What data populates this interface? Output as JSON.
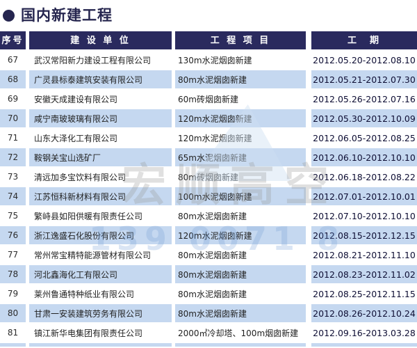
{
  "page": {
    "title": "国内新建工程",
    "bullet_icon": "●"
  },
  "table": {
    "headers": [
      "序号",
      "建 设 单 位",
      "工 程 项 目",
      "工　期"
    ],
    "rows": [
      {
        "no": "67",
        "company": "武汉常阳新力建设工程有限公司",
        "project": "130m水泥烟囱新建",
        "period": "2012.05.20-2012.08.10"
      },
      {
        "no": "68",
        "company": "广灵县标泰建筑安装有限公司",
        "project": "80m水泥烟囱新建",
        "period": "2012.05.21-2012.07.30"
      },
      {
        "no": "69",
        "company": "安徽天成建设有限公司",
        "project": "60m砖烟囱新建",
        "period": "2012.05.26-2012.07.16"
      },
      {
        "no": "70",
        "company": "咸宁南玻玻璃有限公司",
        "project": "120m水泥烟囱新建",
        "period": "2012.05.30-2012.10.09"
      },
      {
        "no": "71",
        "company": "山东大泽化工有限公司",
        "project": "120m水泥烟囱新建",
        "period": "2012.06.05-2012.08.25"
      },
      {
        "no": "72",
        "company": "鞍钢关宝山选矿厂",
        "project": "65m水泥烟囱新建",
        "period": "2012.06.10-2012.10.10"
      },
      {
        "no": "73",
        "company": "清远加多宝饮料有限公司",
        "project": "80m砖烟囱新建",
        "period": "2012.06.18-2012.08.22"
      },
      {
        "no": "74",
        "company": "江苏恒科新材料有限公司",
        "project": "100m水泥烟囱新建",
        "period": "2012.07.01-2012.10.01"
      },
      {
        "no": "75",
        "company": "繁峙县如阳供暖有限责任公司",
        "project": "80m水泥烟囱新建",
        "period": "2012.07.10-2012.10.10"
      },
      {
        "no": "76",
        "company": "浙江逸盛石化股份有限公司",
        "project": "120m水泥烟囱新建",
        "period": "2012.08.15-2012.12.15"
      },
      {
        "no": "77",
        "company": "常州常宝精特能源管材有限公司",
        "project": "80m水泥烟囱新建",
        "period": "2012.08.21-2012.11.10"
      },
      {
        "no": "78",
        "company": "河北鑫海化工有限公司",
        "project": "80m水泥烟囱新建",
        "period": "2012.08.23-2012.11.02"
      },
      {
        "no": "79",
        "company": "莱州鲁通特种纸业有限公司",
        "project": "80m水泥烟囱新建",
        "period": "2012.08.25-2012.11.15"
      },
      {
        "no": "80",
        "company": "甘肃一安装建筑劳务有限公司",
        "project": "80m水泥烟囱新建",
        "period": "2012.08.26-2012.10.24"
      },
      {
        "no": "81",
        "company": "镇江新华电集团有限责任公司",
        "project": "2000㎡冷却塔、100m烟囱新建",
        "period": "2012.09.16-2013.03.28"
      }
    ]
  },
  "watermark": {
    "text": "宏顺高空",
    "phone": "139 0071 8"
  },
  "colors": {
    "navy": "#2a2a5e",
    "row_blue": "#c5d8f0",
    "date_text": "#0d0d33",
    "watermark_gray": "#9a9a9a",
    "watermark_blue": "#6f9cd4"
  }
}
